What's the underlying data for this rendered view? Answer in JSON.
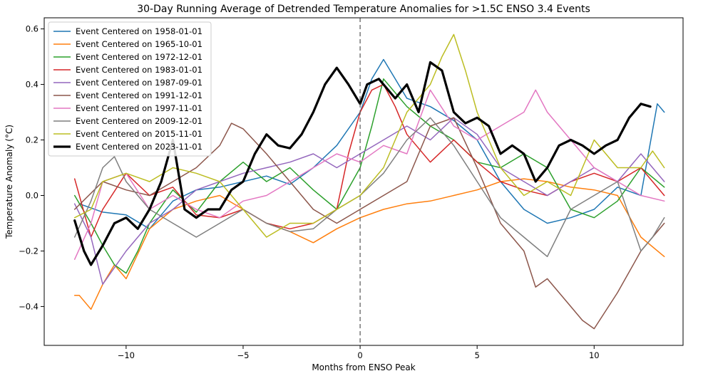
{
  "chart_data": {
    "type": "line",
    "title": "30-Day Running Average of Detrended Temperature Anomalies for >1.5C ENSO 3.4 Events",
    "xlabel": "Months from ENSO Peak",
    "ylabel": "Temperature Anomaly (°C)",
    "xlim": [
      -13.5,
      13.8
    ],
    "ylim": [
      -0.54,
      0.64
    ],
    "xticks": [
      -10,
      -5,
      0,
      5,
      10
    ],
    "yticks": [
      -0.4,
      -0.2,
      0.0,
      0.2,
      0.4,
      0.6
    ],
    "xtick_labels": [
      "−10",
      "−5",
      "0",
      "5",
      "10"
    ],
    "ytick_labels": [
      "−0.4",
      "−0.2",
      "0.0",
      "0.2",
      "0.4",
      "0.6"
    ],
    "vline_x": 0,
    "grid": false,
    "legend_position": "upper-left",
    "series": [
      {
        "name": "Event Centered on 1958-01-01",
        "color": "#1f77b4",
        "width": 1.5,
        "x": [
          -12,
          -11,
          -10,
          -9,
          -8,
          -7,
          -6,
          -5,
          -4,
          -3,
          -2,
          -1,
          0,
          0.5,
          1,
          1.5,
          2,
          3,
          4,
          5,
          6,
          7,
          8,
          9,
          10,
          11,
          12,
          12.7,
          13
        ],
        "y": [
          -0.03,
          -0.06,
          -0.07,
          -0.12,
          -0.02,
          0.02,
          0.03,
          0.05,
          0.07,
          0.04,
          0.1,
          0.18,
          0.3,
          0.42,
          0.49,
          0.42,
          0.35,
          0.32,
          0.27,
          0.2,
          0.05,
          -0.05,
          -0.1,
          -0.08,
          -0.05,
          0.03,
          0.0,
          0.33,
          0.3
        ]
      },
      {
        "name": "Event Centered on 1965-10-01",
        "color": "#ff7f0e",
        "width": 1.5,
        "x": [
          -12.2,
          -12,
          -11.5,
          -11,
          -10.5,
          -10,
          -9,
          -8,
          -7,
          -6,
          -5,
          -4,
          -3,
          -2,
          -1,
          0,
          1,
          2,
          3,
          4,
          5,
          6,
          7,
          8,
          9,
          10,
          11,
          12,
          13
        ],
        "y": [
          -0.36,
          -0.36,
          -0.41,
          -0.32,
          -0.25,
          -0.3,
          -0.12,
          -0.05,
          -0.02,
          0.0,
          -0.05,
          -0.1,
          -0.13,
          -0.17,
          -0.12,
          -0.08,
          -0.05,
          -0.03,
          -0.02,
          0.0,
          0.02,
          0.05,
          0.06,
          0.05,
          0.03,
          0.02,
          0.0,
          -0.15,
          -0.22
        ]
      },
      {
        "name": "Event Centered on 1972-12-01",
        "color": "#2ca02c",
        "width": 1.5,
        "x": [
          -12.2,
          -11.5,
          -11,
          -10.5,
          -10,
          -9.5,
          -9,
          -8,
          -7,
          -6,
          -5,
          -4,
          -3,
          -2,
          -1,
          0,
          0.5,
          1,
          2,
          3,
          4,
          5,
          6,
          7,
          8,
          9,
          10,
          11,
          12,
          13
        ],
        "y": [
          0.0,
          -0.1,
          -0.18,
          -0.25,
          -0.28,
          -0.2,
          -0.1,
          0.02,
          -0.06,
          0.05,
          0.12,
          0.05,
          0.1,
          0.02,
          -0.05,
          0.1,
          0.25,
          0.42,
          0.32,
          0.25,
          0.2,
          0.12,
          0.1,
          0.15,
          0.1,
          -0.05,
          -0.08,
          -0.02,
          0.1,
          0.03
        ]
      },
      {
        "name": "Event Centered on 1983-01-01",
        "color": "#d62728",
        "width": 1.5,
        "x": [
          -12.2,
          -11.5,
          -11,
          -10,
          -9,
          -8,
          -7,
          -6,
          -5,
          -4,
          -3,
          -2,
          -1,
          -0.5,
          0,
          0.5,
          1,
          1.5,
          2,
          3,
          4,
          5,
          6,
          7,
          8,
          9,
          10,
          11,
          12,
          13
        ],
        "y": [
          0.06,
          -0.15,
          -0.05,
          0.08,
          0.0,
          0.03,
          -0.07,
          -0.08,
          -0.05,
          -0.1,
          -0.12,
          -0.1,
          -0.05,
          0.15,
          0.3,
          0.38,
          0.4,
          0.32,
          0.22,
          0.12,
          0.2,
          0.12,
          0.05,
          0.02,
          0.0,
          0.05,
          0.08,
          0.05,
          0.1,
          0.0
        ]
      },
      {
        "name": "Event Centered on 1987-09-01",
        "color": "#9467bd",
        "width": 1.5,
        "x": [
          -12.2,
          -11.5,
          -11,
          -10,
          -9,
          -8,
          -7,
          -6,
          -5,
          -4,
          -3,
          -2,
          -1,
          0,
          1,
          2,
          3,
          4,
          5,
          6,
          7,
          8,
          9,
          10,
          11,
          12,
          13
        ],
        "y": [
          -0.03,
          -0.15,
          -0.32,
          -0.2,
          -0.1,
          -0.05,
          0.02,
          0.05,
          0.08,
          0.1,
          0.12,
          0.15,
          0.1,
          0.15,
          0.2,
          0.25,
          0.2,
          0.28,
          0.22,
          0.1,
          0.05,
          0.0,
          0.05,
          0.1,
          0.05,
          0.15,
          0.05
        ]
      },
      {
        "name": "Event Centered on 1991-12-01",
        "color": "#8c564b",
        "width": 1.5,
        "x": [
          -12.2,
          -11,
          -10,
          -9,
          -8,
          -7,
          -6,
          -5.5,
          -5,
          -4,
          -3,
          -2,
          -1,
          0,
          1,
          2,
          3,
          4,
          5,
          6,
          7,
          7.5,
          8,
          9,
          9.5,
          10,
          11,
          12,
          13
        ],
        "y": [
          -0.05,
          0.05,
          0.02,
          0.0,
          0.05,
          0.1,
          0.18,
          0.26,
          0.24,
          0.15,
          0.05,
          -0.05,
          -0.1,
          -0.05,
          0.0,
          0.05,
          0.25,
          0.28,
          0.1,
          -0.1,
          -0.2,
          -0.33,
          -0.3,
          -0.4,
          -0.45,
          -0.48,
          -0.35,
          -0.2,
          -0.1
        ]
      },
      {
        "name": "Event Centered on 1997-11-01",
        "color": "#e377c2",
        "width": 1.5,
        "x": [
          -12.2,
          -11.5,
          -11,
          -10,
          -9,
          -8,
          -7,
          -6,
          -5,
          -4,
          -3,
          -2,
          -1,
          0,
          1,
          2,
          3,
          4,
          5,
          6,
          7,
          7.5,
          8,
          9,
          10,
          11,
          12,
          13
        ],
        "y": [
          -0.23,
          -0.1,
          0.05,
          0.08,
          -0.05,
          0.0,
          -0.05,
          -0.08,
          -0.02,
          0.0,
          0.05,
          0.1,
          0.15,
          0.12,
          0.18,
          0.15,
          0.38,
          0.25,
          0.2,
          0.25,
          0.3,
          0.38,
          0.3,
          0.2,
          0.1,
          0.05,
          0.0,
          -0.02
        ]
      },
      {
        "name": "Event Centered on 2009-12-01",
        "color": "#7f7f7f",
        "width": 1.5,
        "x": [
          -12.2,
          -11.5,
          -11,
          -10.5,
          -10,
          -9,
          -8,
          -7,
          -6,
          -5,
          -4,
          -3,
          -2,
          -1,
          0,
          1,
          2,
          3,
          4,
          5,
          6,
          7,
          8,
          9,
          10,
          11,
          12,
          12.5,
          13
        ],
        "y": [
          -0.15,
          -0.02,
          0.1,
          0.14,
          0.05,
          -0.05,
          -0.1,
          -0.15,
          -0.1,
          -0.05,
          -0.1,
          -0.13,
          -0.12,
          -0.05,
          0.0,
          0.08,
          0.2,
          0.28,
          0.18,
          0.05,
          -0.08,
          -0.15,
          -0.22,
          -0.05,
          0.0,
          0.05,
          -0.2,
          -0.15,
          -0.08
        ]
      },
      {
        "name": "Event Centered on 2015-11-01",
        "color": "#bcbd22",
        "width": 1.5,
        "x": [
          -12.2,
          -11.5,
          -11,
          -10,
          -9,
          -8,
          -7,
          -6,
          -5,
          -4,
          -3,
          -2,
          -1,
          0,
          1,
          2,
          3,
          3.5,
          4,
          4.5,
          5,
          6,
          7,
          8,
          9,
          10,
          11,
          12,
          12.5,
          13
        ],
        "y": [
          -0.08,
          -0.05,
          0.05,
          0.08,
          0.05,
          0.1,
          0.08,
          0.05,
          -0.05,
          -0.15,
          -0.1,
          -0.1,
          -0.05,
          0.0,
          0.1,
          0.3,
          0.4,
          0.5,
          0.58,
          0.45,
          0.3,
          0.1,
          0.0,
          0.05,
          0.0,
          0.2,
          0.1,
          0.1,
          0.16,
          0.1
        ]
      },
      {
        "name": "Event Centered on 2023-11-01",
        "color": "#000000",
        "width": 3.2,
        "x": [
          -12.2,
          -11.8,
          -11.5,
          -11,
          -10.5,
          -10,
          -9.5,
          -9,
          -8.5,
          -8,
          -7.5,
          -7,
          -6.5,
          -6,
          -5.5,
          -5,
          -4.5,
          -4,
          -3.5,
          -3,
          -2.5,
          -2,
          -1.5,
          -1,
          -0.5,
          0,
          0.3,
          0.8,
          1.5,
          2,
          2.5,
          3,
          3.5,
          4,
          4.5,
          5,
          5.5,
          6,
          6.5,
          7,
          7.5,
          8,
          8.5,
          9,
          9.5,
          10,
          10.5,
          11,
          11.5,
          12,
          12.4
        ],
        "y": [
          -0.09,
          -0.2,
          -0.25,
          -0.18,
          -0.1,
          -0.08,
          -0.12,
          -0.05,
          0.05,
          0.2,
          -0.05,
          -0.08,
          -0.05,
          -0.05,
          0.02,
          0.05,
          0.15,
          0.22,
          0.18,
          0.17,
          0.22,
          0.3,
          0.4,
          0.46,
          0.4,
          0.33,
          0.4,
          0.42,
          0.35,
          0.4,
          0.3,
          0.48,
          0.45,
          0.3,
          0.26,
          0.28,
          0.25,
          0.15,
          0.18,
          0.15,
          0.05,
          0.1,
          0.18,
          0.2,
          0.18,
          0.15,
          0.18,
          0.2,
          0.28,
          0.33,
          0.32
        ]
      }
    ]
  }
}
